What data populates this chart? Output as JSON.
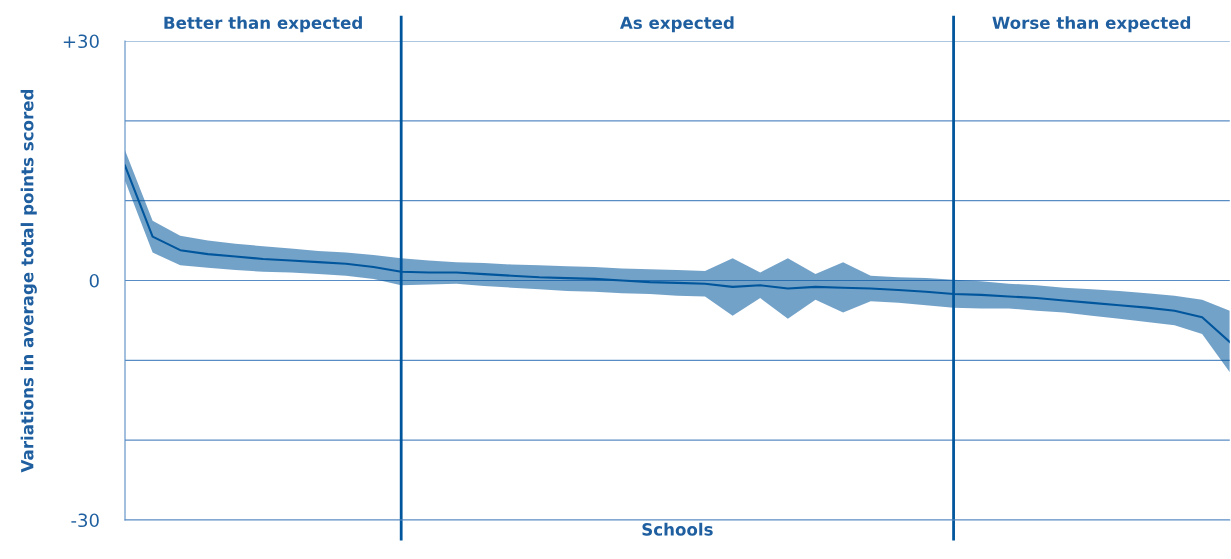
{
  "chart_data": {
    "type": "line",
    "xlabel": "Schools",
    "ylabel": "Variations in average total points scored",
    "categories": [
      null,
      null,
      null,
      null,
      null,
      null,
      null,
      null,
      null,
      null,
      null,
      null,
      null,
      null,
      null,
      null,
      null,
      null,
      null,
      null,
      null,
      null,
      null,
      null,
      null,
      null,
      null,
      null,
      null,
      null,
      null,
      null,
      null,
      null,
      null,
      null,
      null,
      null,
      null,
      null,
      null
    ],
    "series": [
      {
        "color": "#00569c",
        "values": [
          14.4,
          5.5,
          3.8,
          3.3,
          3.0,
          2.7,
          2.5,
          2.3,
          2.1,
          1.7,
          1.1,
          1.0,
          1.0,
          0.8,
          0.6,
          0.4,
          0.3,
          0.2,
          0.0,
          -0.2,
          -0.3,
          -0.4,
          -0.8,
          -0.6,
          -1.0,
          -0.8,
          -0.9,
          -1.0,
          -1.2,
          -1.4,
          -1.7,
          -1.8,
          -2.0,
          -2.2,
          -2.5,
          -2.8,
          -3.1,
          -3.4,
          -3.8,
          -4.6,
          -7.7
        ],
        "lower": [
          12.5,
          3.5,
          1.9,
          1.6,
          1.3,
          1.1,
          1.0,
          0.8,
          0.6,
          0.2,
          -0.6,
          -0.5,
          -0.4,
          -0.7,
          -0.9,
          -1.1,
          -1.3,
          -1.4,
          -1.6,
          -1.7,
          -1.9,
          -2.0,
          -4.4,
          -2.2,
          -4.8,
          -2.4,
          -4.0,
          -2.6,
          -2.8,
          -3.1,
          -3.4,
          -3.5,
          -3.5,
          -3.8,
          -4.0,
          -4.4,
          -4.8,
          -5.2,
          -5.6,
          -6.7,
          -11.5
        ],
        "upper": [
          16.3,
          7.5,
          5.6,
          5.0,
          4.6,
          4.3,
          4.0,
          3.7,
          3.5,
          3.2,
          2.8,
          2.5,
          2.3,
          2.2,
          2.0,
          1.9,
          1.8,
          1.7,
          1.5,
          1.4,
          1.3,
          1.2,
          2.8,
          1.0,
          2.8,
          0.8,
          2.3,
          0.6,
          0.4,
          0.3,
          0.1,
          -0.1,
          -0.4,
          -0.6,
          -0.9,
          -1.1,
          -1.3,
          -1.6,
          -1.9,
          -2.4,
          -3.8
        ]
      }
    ],
    "ylim": [
      -30,
      30
    ],
    "yticks": [
      {
        "value": -30,
        "label": "-30"
      },
      {
        "value": -20,
        "label": null
      },
      {
        "value": -10,
        "label": null
      },
      {
        "value": 0,
        "label": "0"
      },
      {
        "value": 10,
        "label": null
      },
      {
        "value": 20,
        "label": null
      },
      {
        "value": 30,
        "label": "+30"
      }
    ],
    "tick_labels": "y",
    "grid": "y",
    "annotations": [
      "Better than expected",
      "As expected",
      "Worse than expected"
    ]
  }
}
